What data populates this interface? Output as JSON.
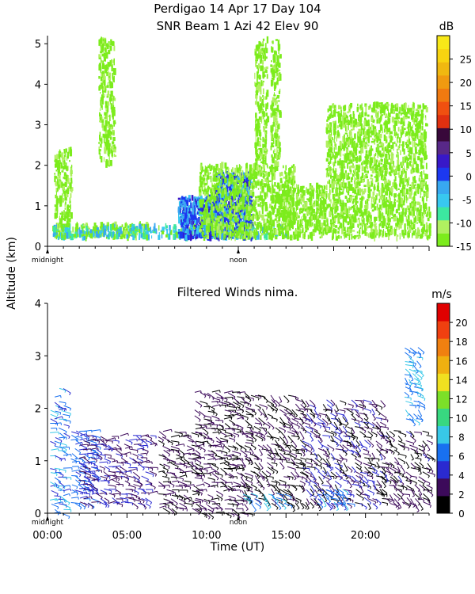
{
  "header": {
    "line1": "Perdigao  14 Apr 17 Day 104",
    "line2": "SNR Beam 1 Azi  42 Elev 90"
  },
  "shared": {
    "altitude_label": "Altitude (km)",
    "midnight_label": "midnight",
    "noon_label": "noon",
    "time_axis_label": "Time (UT)"
  },
  "chart_data": [
    {
      "type": "heatmap",
      "title": "SNR Beam 1 Azi  42 Elev 90",
      "xlabel": "",
      "ylabel": "Altitude (km)",
      "xlim": [
        0,
        24
      ],
      "ylim": [
        0,
        5.2
      ],
      "yticks": [
        "0",
        "1",
        "2",
        "3",
        "4",
        "5"
      ],
      "colorbar": {
        "unit": "dB",
        "range": [
          -15,
          30
        ],
        "tick_labels": [
          "-15",
          "-10",
          "-5",
          "0",
          "5",
          "10",
          "15",
          "20",
          "25"
        ],
        "colors": [
          "#7cec1c",
          "#b0f060",
          "#3ce8a0",
          "#38c8f0",
          "#38a8f0",
          "#1c38f0",
          "#3818c8",
          "#582888",
          "#38083a",
          "#e03010",
          "#f05010",
          "#f07a10",
          "#f09a10",
          "#f0b810",
          "#f8d410",
          "#f8e818"
        ]
      },
      "regions": [
        {
          "x0": 0.3,
          "x1": 6.2,
          "y0": 0.2,
          "y1": 0.55,
          "level": "weak"
        },
        {
          "x0": 0.3,
          "x1": 15.0,
          "y0": 0.2,
          "y1": 0.5,
          "level": "mid"
        },
        {
          "x0": 8.2,
          "x1": 11.2,
          "y0": 0.2,
          "y1": 1.2,
          "level": "strong"
        },
        {
          "x0": 10.5,
          "x1": 12.8,
          "y0": 0.2,
          "y1": 1.8,
          "level": "strong"
        },
        {
          "x0": 9.5,
          "x1": 15.5,
          "y0": 0.2,
          "y1": 2.0,
          "level": "weak"
        },
        {
          "x0": 14.5,
          "x1": 24.0,
          "y0": 0.2,
          "y1": 1.5,
          "level": "weak"
        },
        {
          "x0": 3.2,
          "x1": 4.2,
          "y0": 2.0,
          "y1": 5.1,
          "level": "weak"
        },
        {
          "x0": 13.0,
          "x1": 13.8,
          "y0": 2.0,
          "y1": 5.1,
          "level": "weak"
        },
        {
          "x0": 14.0,
          "x1": 14.6,
          "y0": 2.0,
          "y1": 5.1,
          "level": "weak"
        },
        {
          "x0": 0.4,
          "x1": 1.5,
          "y0": 0.5,
          "y1": 2.4,
          "level": "weak"
        },
        {
          "x0": 17.5,
          "x1": 23.8,
          "y0": 1.5,
          "y1": 3.5,
          "level": "weak"
        }
      ]
    },
    {
      "type": "scatter",
      "title": "Filtered Winds nima.",
      "xlabel": "Time (UT)",
      "ylabel": "Altitude (km)",
      "xlim": [
        0,
        24
      ],
      "ylim": [
        0,
        4
      ],
      "xticks": [
        "00:00",
        "05:00",
        "10:00",
        "15:00",
        "20:00"
      ],
      "yticks": [
        "0",
        "1",
        "2",
        "3",
        "4"
      ],
      "colorbar": {
        "unit": "m/s",
        "range": [
          0,
          22
        ],
        "tick_labels": [
          "0",
          "2",
          "4",
          "6",
          "8",
          "10",
          "12",
          "14",
          "16",
          "18",
          "20"
        ],
        "colors": [
          "#000000",
          "#3c0a5a",
          "#2a2ad0",
          "#1870f0",
          "#38c8e8",
          "#38d880",
          "#7ce028",
          "#f0e020",
          "#f0b010",
          "#f08010",
          "#f04010",
          "#e00000"
        ]
      },
      "wind_regions": [
        {
          "x0": 0.2,
          "x1": 1.2,
          "y0": 0.0,
          "y1": 2.4,
          "speed_min": 4,
          "speed_max": 9
        },
        {
          "x0": 1.5,
          "x1": 3.0,
          "y0": 0.2,
          "y1": 1.6,
          "speed_min": 5,
          "speed_max": 7
        },
        {
          "x0": 2.0,
          "x1": 6.5,
          "y0": 0.2,
          "y1": 1.5,
          "speed_min": 2,
          "speed_max": 5
        },
        {
          "x0": 7.0,
          "x1": 9.5,
          "y0": 0.1,
          "y1": 1.6,
          "speed_min": 1,
          "speed_max": 3
        },
        {
          "x0": 9.3,
          "x1": 12.5,
          "y0": 0.0,
          "y1": 2.3,
          "speed_min": 1,
          "speed_max": 3
        },
        {
          "x0": 12.5,
          "x1": 16.0,
          "y0": 0.2,
          "y1": 2.3,
          "speed_min": 0,
          "speed_max": 3
        },
        {
          "x0": 16.0,
          "x1": 21.0,
          "y0": 0.2,
          "y1": 2.2,
          "speed_min": 0,
          "speed_max": 5
        },
        {
          "x0": 21.0,
          "x1": 24.0,
          "y0": 0.2,
          "y1": 1.6,
          "speed_min": 0,
          "speed_max": 4
        },
        {
          "x0": 22.5,
          "x1": 23.5,
          "y0": 1.8,
          "y1": 3.2,
          "speed_min": 6,
          "speed_max": 9
        },
        {
          "x0": 12.3,
          "x1": 15.0,
          "y0": 0.2,
          "y1": 0.4,
          "speed_min": 6,
          "speed_max": 9
        },
        {
          "x0": 17.0,
          "x1": 19.0,
          "y0": 0.2,
          "y1": 0.5,
          "speed_min": 5,
          "speed_max": 8
        }
      ]
    }
  ]
}
